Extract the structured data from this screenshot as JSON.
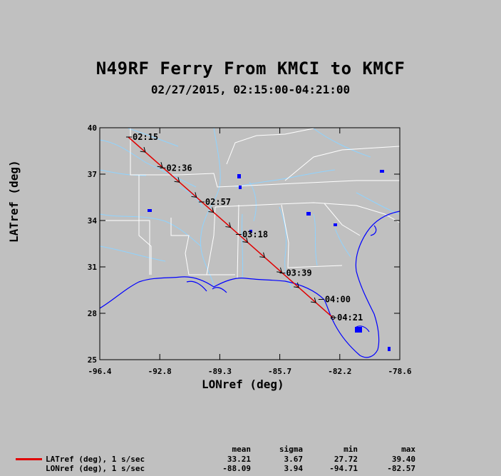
{
  "title": "N49RF Ferry From KMCI to KMCF",
  "subtitle": "02/27/2015, 02:15:00-04:21:00",
  "chart_data": {
    "type": "line",
    "xlabel": "LONref (deg)",
    "ylabel": "LATref (deg)",
    "xlim": [
      -96.4,
      -78.6
    ],
    "ylim": [
      25,
      40
    ],
    "xticks": [
      "-96.4",
      "-92.8",
      "-89.3",
      "-85.7",
      "-82.2",
      "-78.6"
    ],
    "yticks": [
      "40",
      "37",
      "34",
      "31",
      "28",
      "25"
    ],
    "track": {
      "color": "#e00000",
      "lon": [
        -94.71,
        -82.57
      ],
      "lat": [
        39.4,
        27.72
      ]
    },
    "time_labels": [
      {
        "text": "02:15",
        "lon": -94.71,
        "lat": 39.4
      },
      {
        "text": "02:36",
        "lon": -92.7,
        "lat": 37.4
      },
      {
        "text": "02:57",
        "lon": -90.4,
        "lat": 35.2
      },
      {
        "text": "03:18",
        "lon": -88.2,
        "lat": 33.1
      },
      {
        "text": "03:39",
        "lon": -85.6,
        "lat": 30.6
      },
      {
        "text": "04:00",
        "lon": -83.3,
        "lat": 28.9
      },
      {
        "text": "04:21",
        "lon": -82.57,
        "lat": 27.72
      }
    ]
  },
  "legend": {
    "headers": [
      "mean",
      "sigma",
      "min",
      "max"
    ],
    "rows": [
      {
        "name": "LATref (deg), 1 s/sec",
        "mean": "33.21",
        "sigma": "3.67",
        "min": "27.72",
        "max": "39.40",
        "has_line": true
      },
      {
        "name": "LONref (deg), 1 s/sec",
        "mean": "-88.09",
        "sigma": "3.94",
        "min": "-94.71",
        "max": "-82.57",
        "has_line": false
      }
    ]
  },
  "colors": {
    "background": "#c0c0c0",
    "coastline": "#0000ff",
    "rivers": "#8fd3ff",
    "borders": "#ffffff",
    "track": "#e00000"
  }
}
